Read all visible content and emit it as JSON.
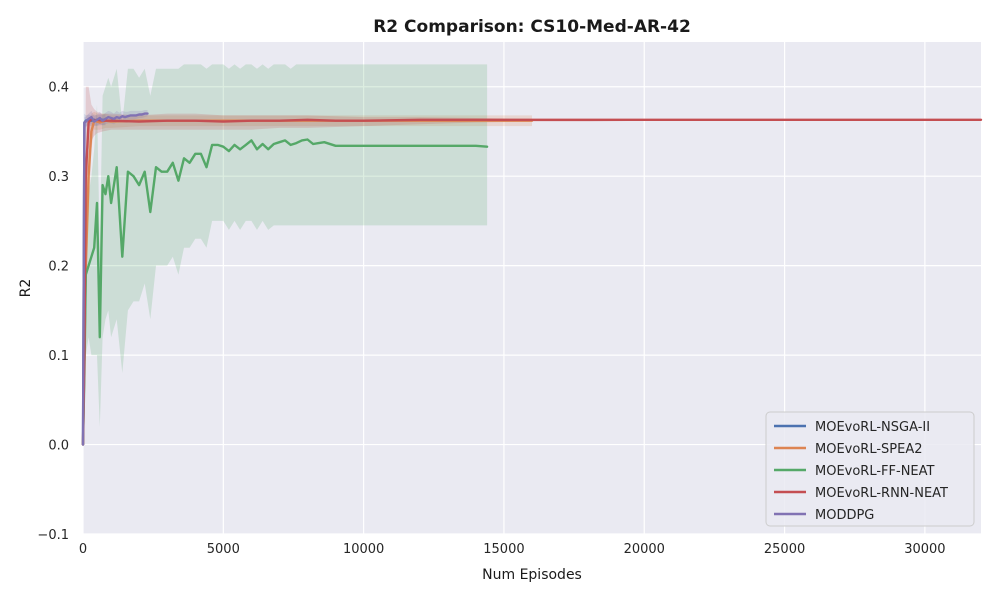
{
  "chart_data": {
    "type": "line",
    "title": "R2 Comparison: CS10-Med-AR-42",
    "xlabel": "Num Episodes",
    "ylabel": "R2",
    "xlim": [
      0,
      32000
    ],
    "ylim": [
      -0.1,
      0.45
    ],
    "xticks": [
      0,
      5000,
      10000,
      15000,
      20000,
      25000,
      30000
    ],
    "yticks": [
      -0.1,
      0.0,
      0.1,
      0.2,
      0.3,
      0.4
    ],
    "ytick_labels": [
      "−0.1",
      "0.0",
      "0.1",
      "0.2",
      "0.3",
      "0.4"
    ],
    "grid": true,
    "legend_position": "lower-right",
    "background_color": "#eaeaf2",
    "series": [
      {
        "name": "MOEvoRL-NSGA-II",
        "color": "#4c72b0",
        "x": [
          0,
          50,
          100,
          200,
          300,
          400,
          500,
          600,
          700,
          800
        ],
        "y": [
          0.0,
          0.36,
          0.362,
          0.363,
          0.362,
          0.363,
          0.362,
          0.363,
          0.363,
          0.363
        ],
        "lower": [
          0.0,
          0.35,
          0.355,
          0.357,
          0.356,
          0.357,
          0.356,
          0.357,
          0.357,
          0.357
        ],
        "upper": [
          0.0,
          0.37,
          0.368,
          0.369,
          0.368,
          0.369,
          0.368,
          0.369,
          0.369,
          0.369
        ]
      },
      {
        "name": "MOEvoRL-SPEA2",
        "color": "#dd8452",
        "x": [
          0,
          100,
          200,
          300,
          400,
          600,
          800,
          1000,
          2000,
          4000,
          6000,
          8000,
          10000,
          12000,
          14000,
          16000
        ],
        "y": [
          0.0,
          0.2,
          0.3,
          0.35,
          0.362,
          0.36,
          0.362,
          0.361,
          0.362,
          0.362,
          0.362,
          0.362,
          0.362,
          0.362,
          0.362,
          0.362
        ],
        "lower": [
          0.0,
          0.15,
          0.25,
          0.33,
          0.352,
          0.352,
          0.354,
          0.354,
          0.356,
          0.356,
          0.356,
          0.356,
          0.356,
          0.356,
          0.356,
          0.356
        ],
        "upper": [
          0.0,
          0.25,
          0.35,
          0.37,
          0.372,
          0.369,
          0.37,
          0.368,
          0.368,
          0.368,
          0.368,
          0.368,
          0.368,
          0.368,
          0.368,
          0.368
        ]
      },
      {
        "name": "MOEvoRL-FF-NEAT",
        "color": "#55a868",
        "x": [
          0,
          50,
          100,
          200,
          300,
          400,
          500,
          600,
          700,
          800,
          900,
          1000,
          1200,
          1400,
          1600,
          1800,
          2000,
          2200,
          2400,
          2600,
          2800,
          3000,
          3200,
          3400,
          3600,
          3800,
          4000,
          4200,
          4400,
          4600,
          4800,
          5000,
          5200,
          5400,
          5600,
          5800,
          6000,
          6200,
          6400,
          6600,
          6800,
          7000,
          7200,
          7400,
          7600,
          7800,
          8000,
          8200,
          8400,
          8600,
          9000,
          10000,
          11000,
          12000,
          13000,
          14000,
          14400
        ],
        "y": [
          0.0,
          0.08,
          0.19,
          0.2,
          0.21,
          0.22,
          0.27,
          0.12,
          0.29,
          0.28,
          0.3,
          0.27,
          0.31,
          0.21,
          0.305,
          0.3,
          0.29,
          0.305,
          0.26,
          0.31,
          0.305,
          0.305,
          0.315,
          0.295,
          0.32,
          0.315,
          0.325,
          0.325,
          0.31,
          0.335,
          0.335,
          0.333,
          0.328,
          0.335,
          0.33,
          0.335,
          0.34,
          0.33,
          0.336,
          0.33,
          0.336,
          0.338,
          0.34,
          0.335,
          0.337,
          0.34,
          0.341,
          0.336,
          0.337,
          0.338,
          0.334,
          0.334,
          0.334,
          0.334,
          0.334,
          0.334,
          0.333
        ],
        "lower": [
          0.0,
          0.05,
          0.1,
          0.12,
          0.1,
          0.1,
          0.1,
          0.02,
          0.12,
          0.14,
          0.15,
          0.12,
          0.14,
          0.08,
          0.15,
          0.16,
          0.16,
          0.18,
          0.14,
          0.2,
          0.2,
          0.2,
          0.21,
          0.19,
          0.22,
          0.22,
          0.23,
          0.23,
          0.22,
          0.25,
          0.25,
          0.25,
          0.24,
          0.25,
          0.24,
          0.25,
          0.25,
          0.24,
          0.25,
          0.24,
          0.245,
          0.245,
          0.245,
          0.245,
          0.245,
          0.245,
          0.245,
          0.245,
          0.245,
          0.245,
          0.245,
          0.245,
          0.245,
          0.245,
          0.245,
          0.245,
          0.245
        ],
        "upper": [
          0.0,
          0.12,
          0.26,
          0.28,
          0.3,
          0.33,
          0.38,
          0.22,
          0.39,
          0.4,
          0.41,
          0.4,
          0.42,
          0.36,
          0.42,
          0.42,
          0.41,
          0.42,
          0.39,
          0.42,
          0.42,
          0.42,
          0.42,
          0.42,
          0.425,
          0.425,
          0.425,
          0.425,
          0.42,
          0.425,
          0.425,
          0.425,
          0.42,
          0.425,
          0.42,
          0.425,
          0.425,
          0.42,
          0.425,
          0.42,
          0.425,
          0.425,
          0.425,
          0.42,
          0.425,
          0.425,
          0.425,
          0.425,
          0.425,
          0.425,
          0.425,
          0.425,
          0.425,
          0.425,
          0.425,
          0.425,
          0.425
        ]
      },
      {
        "name": "MOEvoRL-RNN-NEAT",
        "color": "#c44e52",
        "x": [
          0,
          50,
          100,
          200,
          300,
          400,
          500,
          700,
          1000,
          2000,
          3000,
          4000,
          5000,
          6000,
          7000,
          8000,
          9000,
          10000,
          12000,
          14000,
          16000,
          18000,
          20000,
          22000,
          24000,
          26000,
          28000,
          30000,
          32000
        ],
        "y": [
          0.0,
          0.1,
          0.3,
          0.36,
          0.364,
          0.362,
          0.363,
          0.362,
          0.362,
          0.361,
          0.362,
          0.362,
          0.361,
          0.362,
          0.362,
          0.363,
          0.362,
          0.362,
          0.363,
          0.363,
          0.363,
          0.363,
          0.363,
          0.363,
          0.363,
          0.363,
          0.363,
          0.363,
          0.363
        ],
        "lower": [
          0.0,
          0.08,
          0.2,
          0.33,
          0.34,
          0.345,
          0.348,
          0.35,
          0.352,
          0.352,
          0.352,
          0.352,
          0.352,
          0.352,
          0.354,
          0.354,
          0.355,
          0.356,
          0.358,
          0.36,
          0.361,
          0.361,
          0.362,
          0.362,
          0.362,
          0.362,
          0.362,
          0.362,
          0.362
        ],
        "upper": [
          0.0,
          0.12,
          0.4,
          0.4,
          0.38,
          0.375,
          0.372,
          0.37,
          0.37,
          0.368,
          0.37,
          0.37,
          0.368,
          0.368,
          0.368,
          0.368,
          0.367,
          0.366,
          0.366,
          0.365,
          0.364,
          0.364,
          0.364,
          0.364,
          0.364,
          0.364,
          0.364,
          0.364,
          0.364
        ]
      },
      {
        "name": "MODDPG",
        "color": "#8172b3",
        "x": [
          0,
          50,
          100,
          200,
          300,
          400,
          500,
          600,
          700,
          800,
          900,
          1000,
          1100,
          1200,
          1300,
          1400,
          1500,
          1600,
          1700,
          1800,
          1900,
          2000,
          2100,
          2200,
          2300
        ],
        "y": [
          0.0,
          0.36,
          0.361,
          0.364,
          0.366,
          0.361,
          0.363,
          0.365,
          0.362,
          0.364,
          0.366,
          0.365,
          0.364,
          0.366,
          0.365,
          0.367,
          0.366,
          0.367,
          0.368,
          0.368,
          0.368,
          0.369,
          0.369,
          0.37,
          0.37
        ],
        "lower": [
          0.0,
          0.355,
          0.356,
          0.358,
          0.358,
          0.356,
          0.357,
          0.358,
          0.357,
          0.358,
          0.359,
          0.359,
          0.358,
          0.36,
          0.36,
          0.361,
          0.361,
          0.362,
          0.363,
          0.363,
          0.364,
          0.365,
          0.365,
          0.366,
          0.367
        ],
        "upper": [
          0.0,
          0.366,
          0.366,
          0.37,
          0.373,
          0.367,
          0.369,
          0.372,
          0.368,
          0.371,
          0.373,
          0.372,
          0.37,
          0.373,
          0.371,
          0.373,
          0.372,
          0.372,
          0.373,
          0.373,
          0.373,
          0.373,
          0.373,
          0.374,
          0.374
        ]
      }
    ]
  }
}
